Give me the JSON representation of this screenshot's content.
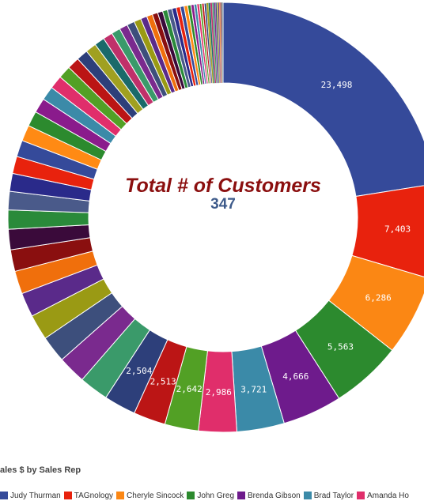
{
  "chart_data": {
    "type": "pie",
    "variant": "donut",
    "title": "ales $ by Sales Rep",
    "center_title": "Total # of Customers",
    "center_value": "347",
    "labeled_slices": [
      {
        "name": "Judy Thurman",
        "value": 23498,
        "label": "23,498",
        "color": "#354a9a"
      },
      {
        "name": "TAGnology",
        "value": 7403,
        "label": "7,403",
        "color": "#e8220d"
      },
      {
        "name": "Cheryle Sincock",
        "value": 6286,
        "label": "6,286",
        "color": "#fb8714"
      },
      {
        "name": "John Greg",
        "value": 5563,
        "label": "5,563",
        "color": "#2c8a2e"
      },
      {
        "name": "Brenda Gibson",
        "value": 4666,
        "label": "4,666",
        "color": "#6e1b8c"
      },
      {
        "name": "Brad Taylor",
        "value": 3721,
        "label": "3,721",
        "color": "#3b8aa8"
      },
      {
        "name": "Amanda Ho",
        "value": 2986,
        "label": "2,986",
        "color": "#e02e6b"
      },
      {
        "value": 2642,
        "label": "2,642",
        "color": "#52a025"
      },
      {
        "value": 2513,
        "label": "2,513",
        "color": "#bb1515"
      },
      {
        "value": 2504,
        "label": "2,504",
        "color": "#2d3f7a"
      }
    ],
    "unlabeled_slices": [
      2300,
      2200,
      2100,
      2000,
      1900,
      1800,
      1700,
      1600,
      1500,
      1450,
      1400,
      1350,
      1300,
      1250,
      1200,
      1150,
      1100,
      1050,
      1000,
      950,
      900,
      850,
      800,
      750,
      700,
      650,
      600,
      550,
      500,
      460,
      430,
      400,
      380,
      360,
      340,
      320,
      300,
      280,
      260,
      240,
      220,
      200,
      190,
      180,
      170,
      160,
      150,
      140,
      130,
      120,
      110,
      100,
      90,
      80,
      70,
      60,
      50,
      40
    ],
    "palette": [
      "#3a9a6a",
      "#7a2a8e",
      "#3d4f7c",
      "#9a9a14",
      "#5a2a8a",
      "#f06f0c",
      "#8a0f0f",
      "#3a0a3a",
      "#2a8a3a",
      "#4a5a8a",
      "#2a2a8a",
      "#e8220d",
      "#354a9a",
      "#ff8a14",
      "#2c8a2e",
      "#8a1b8c",
      "#3b8aa8",
      "#e02e6b",
      "#52a025",
      "#bb1515",
      "#2d3f7a",
      "#a0a020",
      "#1a6a6a",
      "#c0306a"
    ],
    "legend": [
      "Judy Thurman",
      "TAGnology",
      "Cheryle Sincock",
      "John Greg",
      "Brenda Gibson",
      "Brad Taylor",
      "Amanda Ho"
    ]
  }
}
